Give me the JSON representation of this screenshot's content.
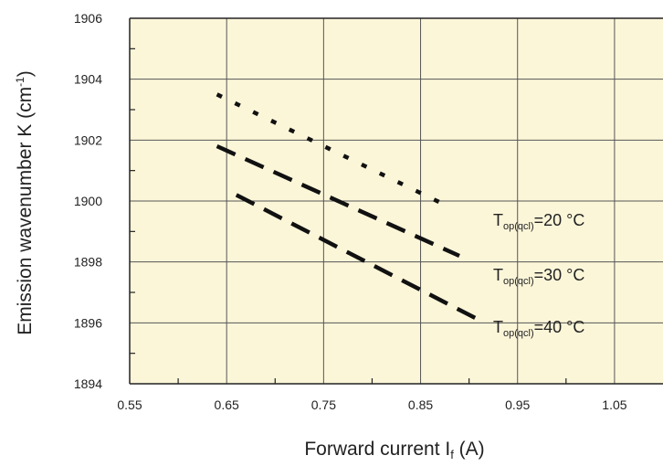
{
  "chart_data": {
    "type": "line",
    "title": "",
    "xlabel": "Forward current I",
    "xlabel_sub": "f",
    "xlabel_unit": " (A)",
    "ylabel": "Emission wavenumber K (cm",
    "ylabel_sup": "-1",
    "ylabel_end": ")",
    "xlim": [
      0.55,
      1.1
    ],
    "ylim": [
      1894,
      1906
    ],
    "x_ticks": [
      "0.55",
      "0.65",
      "0.75",
      "0.85",
      "0.95",
      "1.05"
    ],
    "y_ticks": [
      "1894",
      "1896",
      "1898",
      "1900",
      "1902",
      "1904",
      "1906"
    ],
    "grid": true,
    "plot_background": "#fcf6d9",
    "series": [
      {
        "label_main": "T",
        "label_sub": "op(qcl)",
        "label_tail": "=20 °C",
        "dash": "dotted",
        "x": [
          0.64,
          0.88
        ],
        "y": [
          1903.5,
          1899.8
        ]
      },
      {
        "label_main": "T",
        "label_sub": "op(qcl)",
        "label_tail": "=30 °C",
        "dash": "dashed",
        "x": [
          0.64,
          0.89
        ],
        "y": [
          1901.8,
          1898.2
        ]
      },
      {
        "label_main": "T",
        "label_sub": "op(qcl)",
        "label_tail": "=40 °C",
        "dash": "dashed",
        "x": [
          0.66,
          0.91
        ],
        "y": [
          1900.2,
          1896.1
        ]
      }
    ]
  }
}
